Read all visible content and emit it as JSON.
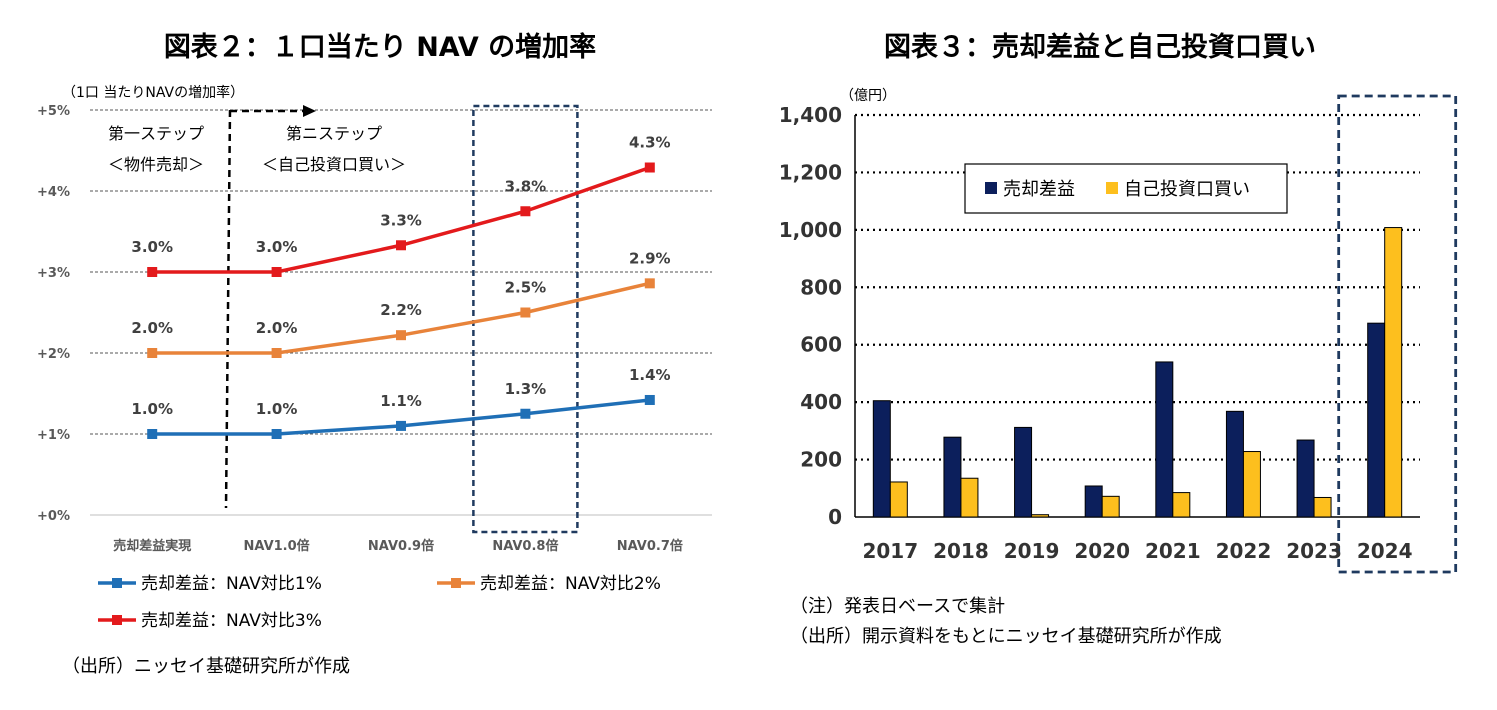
{
  "chart_data": [
    {
      "type": "line",
      "title": "図表２：１口当たり NAV の増加率",
      "ylabel": "（1口 当たりNAVの増加率）",
      "xlabel": "",
      "ylim": [
        0,
        5
      ],
      "yticks": [
        "+0%",
        "+1%",
        "+2%",
        "+3%",
        "+4%",
        "+5%"
      ],
      "categories": [
        "売却差益実現",
        "NAV1.0倍",
        "NAV0.9倍",
        "NAV0.8倍",
        "NAV0.7倍"
      ],
      "series": [
        {
          "name": "売却差益：NAV対比1%",
          "color": "#1f6fb6",
          "values": [
            1.0,
            1.0,
            1.1,
            1.25,
            1.42
          ],
          "labels": [
            "1.0%",
            "1.0%",
            "1.1%",
            "1.3%",
            "1.4%"
          ]
        },
        {
          "name": "売却差益：NAV対比2%",
          "color": "#e8833a",
          "values": [
            2.0,
            2.0,
            2.22,
            2.5,
            2.86
          ],
          "labels": [
            "2.0%",
            "2.0%",
            "2.2%",
            "2.5%",
            "2.9%"
          ]
        },
        {
          "name": "売却差益：NAV対比3%",
          "color": "#e31a1c",
          "values": [
            3.0,
            3.0,
            3.33,
            3.75,
            4.29
          ],
          "labels": [
            "3.0%",
            "3.0%",
            "3.3%",
            "3.8%",
            "4.3%"
          ]
        }
      ],
      "stages": [
        {
          "line1": "第一ステップ",
          "line2": "＜物件売却＞"
        },
        {
          "line1": "第ニステップ",
          "line2": "＜自己投資口買い＞"
        }
      ],
      "highlight_category": "NAV0.8倍",
      "legend": "bottom",
      "source": "（出所）ニッセイ基礎研究所が作成"
    },
    {
      "type": "bar",
      "title": "図表３：売却差益と自己投資口買い",
      "ylabel": "（億円）",
      "xlabel": "",
      "ylim": [
        0,
        1400
      ],
      "yticks": [
        "0",
        "200",
        "400",
        "600",
        "800",
        "1,000",
        "1,200",
        "1,400"
      ],
      "categories": [
        "2017",
        "2018",
        "2019",
        "2020",
        "2021",
        "2022",
        "2023",
        "2024"
      ],
      "series": [
        {
          "name": "売却差益",
          "color": "#0c1f5c",
          "values": [
            405,
            278,
            312,
            108,
            540,
            368,
            268,
            675
          ]
        },
        {
          "name": "自己投資口買い",
          "color": "#fdbf1e",
          "values": [
            122,
            135,
            8,
            72,
            85,
            228,
            68,
            1008
          ]
        }
      ],
      "highlight_category": "2024",
      "legend": "top-center",
      "notes": [
        "（注）発表日ベースで集計",
        "（出所）開示資料をもとにニッセイ基礎研究所が作成"
      ]
    }
  ]
}
